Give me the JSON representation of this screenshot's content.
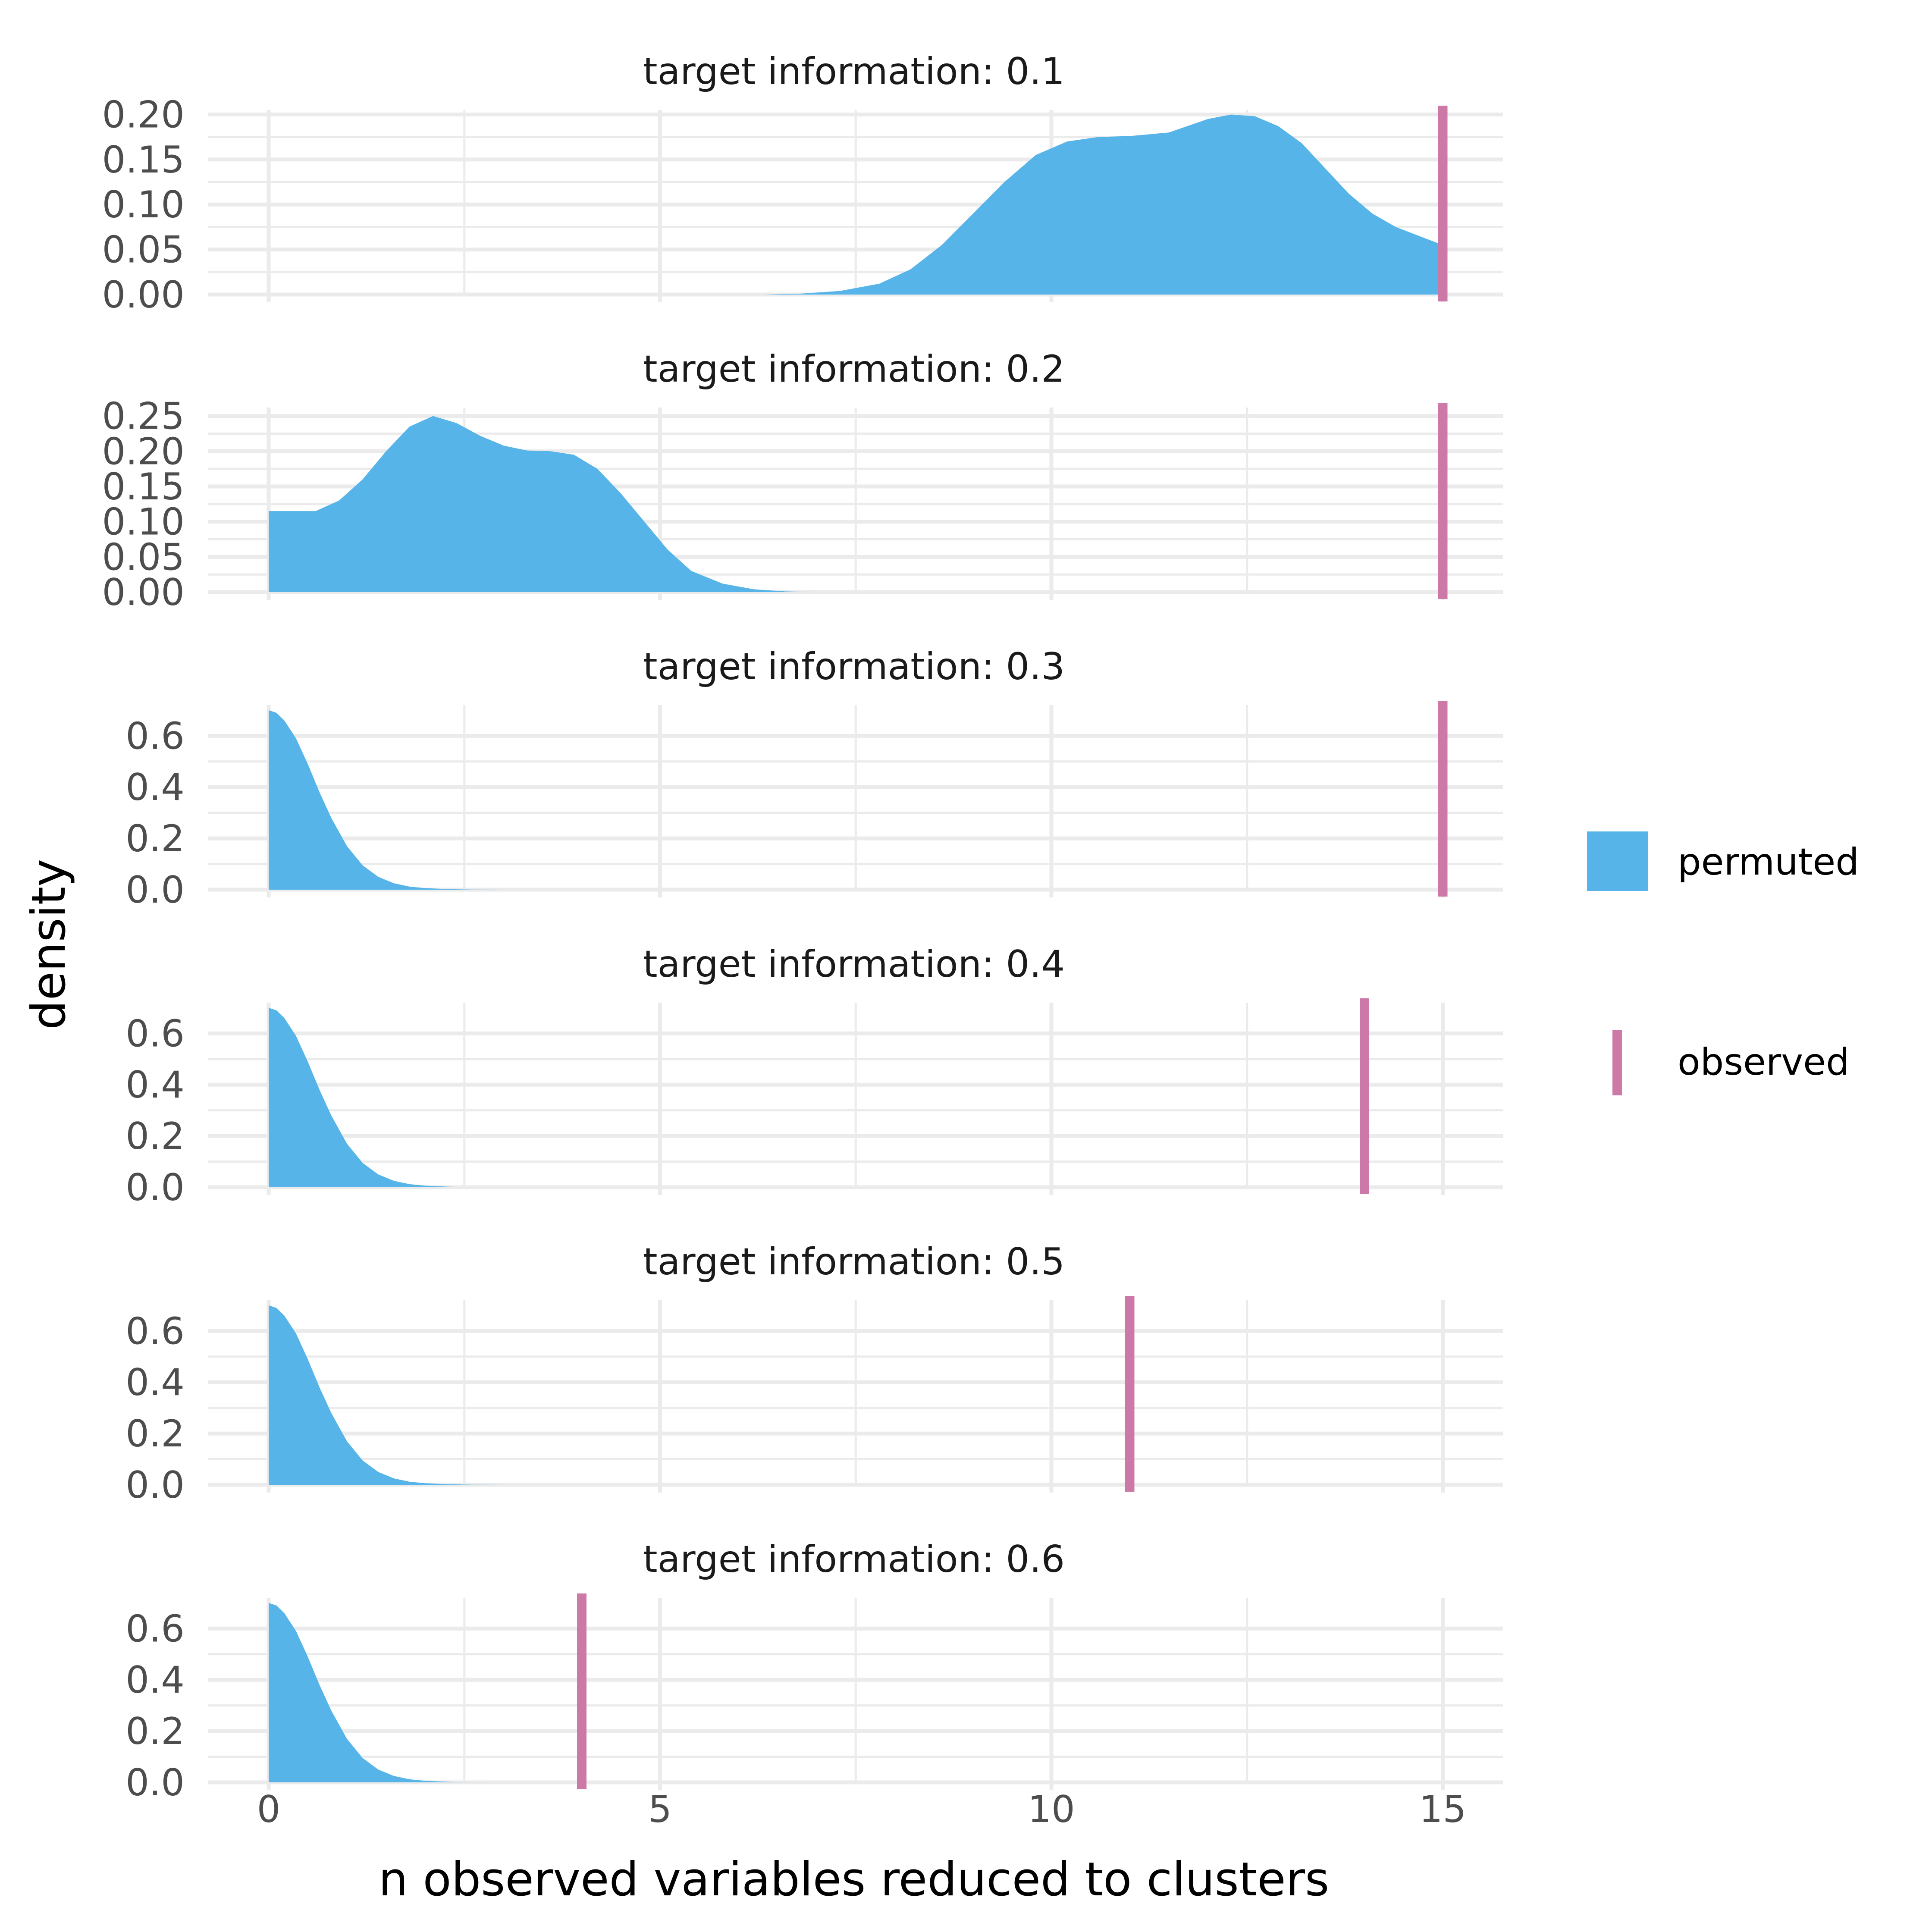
{
  "chart_data": {
    "type": "density",
    "xlabel": "n observed variables reduced to clusters",
    "ylabel": "density",
    "xlim": [
      -1.5,
      15.5
    ],
    "x_ticks": [
      0,
      5,
      10,
      15
    ],
    "grid": true,
    "legend_position": "right",
    "legend": {
      "entries": [
        {
          "label": "permuted",
          "key": "fill",
          "color": "#56B4E9"
        },
        {
          "label": "observed",
          "key": "line",
          "color": "#CC79A7"
        }
      ]
    },
    "facets": [
      {
        "title": "target information: 0.1",
        "ylim": [
          0,
          0.205
        ],
        "y_ticks": [
          0.0,
          0.05,
          0.1,
          0.15,
          0.2
        ],
        "y_tick_labels": [
          "0.00",
          "0.05",
          "0.10",
          "0.15",
          "0.20"
        ],
        "observed": 15,
        "permuted_density": {
          "x": [
            6.3,
            6.8,
            7.3,
            7.8,
            8.2,
            8.6,
            9.0,
            9.4,
            9.8,
            10.2,
            10.6,
            11.0,
            11.5,
            12.0,
            12.3,
            12.6,
            12.9,
            13.2,
            13.5,
            13.8,
            14.1,
            14.4,
            14.7,
            15.0
          ],
          "y": [
            0.0,
            0.001,
            0.004,
            0.012,
            0.028,
            0.055,
            0.09,
            0.125,
            0.155,
            0.17,
            0.175,
            0.176,
            0.18,
            0.195,
            0.2,
            0.198,
            0.187,
            0.168,
            0.14,
            0.112,
            0.09,
            0.075,
            0.065,
            0.055
          ]
        }
      },
      {
        "title": "target information: 0.2",
        "ylim": [
          0,
          0.262
        ],
        "y_ticks": [
          0.0,
          0.05,
          0.1,
          0.15,
          0.2,
          0.25
        ],
        "y_tick_labels": [
          "0.00",
          "0.05",
          "0.10",
          "0.15",
          "0.20",
          "0.25"
        ],
        "observed": 15,
        "permuted_density": {
          "x": [
            0.0,
            0.3,
            0.6,
            0.9,
            1.2,
            1.5,
            1.8,
            2.1,
            2.4,
            2.7,
            3.0,
            3.3,
            3.6,
            3.9,
            4.2,
            4.5,
            4.8,
            5.1,
            5.4,
            5.8,
            6.2,
            6.6,
            7.0
          ],
          "y": [
            0.115,
            0.115,
            0.115,
            0.13,
            0.16,
            0.2,
            0.235,
            0.25,
            0.24,
            0.222,
            0.208,
            0.201,
            0.2,
            0.195,
            0.175,
            0.14,
            0.1,
            0.06,
            0.03,
            0.012,
            0.004,
            0.001,
            0.0
          ]
        }
      },
      {
        "title": "target information: 0.3",
        "ylim": [
          0,
          0.72
        ],
        "y_ticks": [
          0.0,
          0.2,
          0.4,
          0.6
        ],
        "y_tick_labels": [
          "0.0",
          "0.2",
          "0.4",
          "0.6"
        ],
        "observed": 15,
        "permuted_density": {
          "x": [
            0.0,
            0.1,
            0.2,
            0.35,
            0.5,
            0.65,
            0.8,
            1.0,
            1.2,
            1.4,
            1.6,
            1.8,
            2.0,
            2.3,
            2.6,
            3.0
          ],
          "y": [
            0.7,
            0.69,
            0.66,
            0.59,
            0.49,
            0.38,
            0.28,
            0.17,
            0.095,
            0.05,
            0.025,
            0.012,
            0.006,
            0.002,
            0.0005,
            0.0
          ]
        }
      },
      {
        "title": "target information: 0.4",
        "ylim": [
          0,
          0.72
        ],
        "y_ticks": [
          0.0,
          0.2,
          0.4,
          0.6
        ],
        "y_tick_labels": [
          "0.0",
          "0.2",
          "0.4",
          "0.6"
        ],
        "observed": 14,
        "permuted_density": {
          "x": [
            0.0,
            0.1,
            0.2,
            0.35,
            0.5,
            0.65,
            0.8,
            1.0,
            1.2,
            1.4,
            1.6,
            1.8,
            2.0,
            2.3,
            2.6,
            3.0
          ],
          "y": [
            0.7,
            0.69,
            0.66,
            0.59,
            0.49,
            0.38,
            0.28,
            0.17,
            0.095,
            0.05,
            0.025,
            0.012,
            0.006,
            0.002,
            0.0005,
            0.0
          ]
        }
      },
      {
        "title": "target information: 0.5",
        "ylim": [
          0,
          0.72
        ],
        "y_ticks": [
          0.0,
          0.2,
          0.4,
          0.6
        ],
        "y_tick_labels": [
          "0.0",
          "0.2",
          "0.4",
          "0.6"
        ],
        "observed": 11,
        "permuted_density": {
          "x": [
            0.0,
            0.1,
            0.2,
            0.35,
            0.5,
            0.65,
            0.8,
            1.0,
            1.2,
            1.4,
            1.6,
            1.8,
            2.0,
            2.3,
            2.6,
            3.0
          ],
          "y": [
            0.7,
            0.69,
            0.66,
            0.59,
            0.49,
            0.38,
            0.28,
            0.17,
            0.095,
            0.05,
            0.025,
            0.012,
            0.006,
            0.002,
            0.0005,
            0.0
          ]
        }
      },
      {
        "title": "target information: 0.6",
        "ylim": [
          0,
          0.72
        ],
        "y_ticks": [
          0.0,
          0.2,
          0.4,
          0.6
        ],
        "y_tick_labels": [
          "0.0",
          "0.2",
          "0.4",
          "0.6"
        ],
        "observed": 4,
        "permuted_density": {
          "x": [
            0.0,
            0.1,
            0.2,
            0.35,
            0.5,
            0.65,
            0.8,
            1.0,
            1.2,
            1.4,
            1.6,
            1.8,
            2.0,
            2.3,
            2.6,
            3.0
          ],
          "y": [
            0.7,
            0.69,
            0.66,
            0.59,
            0.49,
            0.38,
            0.28,
            0.17,
            0.095,
            0.05,
            0.025,
            0.012,
            0.006,
            0.002,
            0.0005,
            0.0
          ]
        }
      }
    ]
  }
}
